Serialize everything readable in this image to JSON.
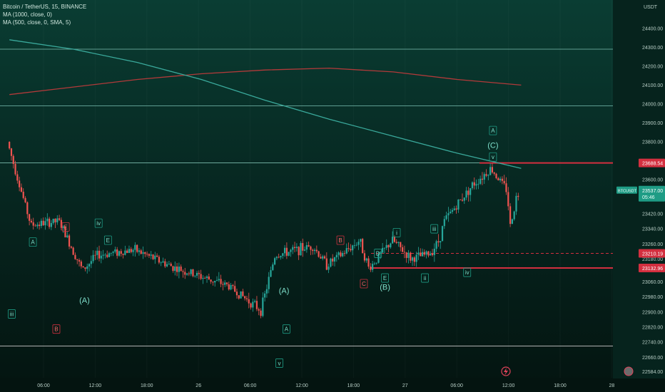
{
  "symbol": {
    "title": "Bitcoin / TetherUS, 15, BINANCE",
    "indicator_1": "MA (1000, close, 0)",
    "indicator_2": "MA (500, close, 0, SMA, 5)"
  },
  "currency_label": "USDT",
  "colors": {
    "background_top": "#0a3d33",
    "background_bottom": "#041410",
    "up_candle": "#26a69a",
    "down_candle": "#ef5350",
    "ma_1000": "#b23a3a",
    "ma_500": "#3aa99b",
    "accent_red": "#d32f3f",
    "accent_green": "#1e9c85"
  },
  "price_badges": {
    "top_resistance": "23688.54",
    "current": "23537.00",
    "current_sub": "05:46",
    "symbol_tag": "BTCUSDT",
    "dashed_level": "23210.19",
    "support": "23132.96"
  },
  "icons": {
    "lightning_icon": "lightning-icon",
    "reset_icon": "reset-icon"
  },
  "chart_data": {
    "type": "candlestick",
    "title": "Bitcoin / TetherUS, 15, BINANCE",
    "xlabel": "",
    "ylabel": "USDT",
    "ylim": [
      22560,
      24520
    ],
    "y_ticks": [
      24400,
      24300,
      24200,
      24100,
      24000,
      23900,
      23800,
      23600,
      23520,
      23420,
      23340,
      23260,
      23180,
      23060,
      22980,
      22900,
      22820,
      22740,
      22660,
      22584
    ],
    "x_ticks": [
      "06:00",
      "12:00",
      "18:00",
      "26",
      "06:00",
      "12:00",
      "18:00",
      "27",
      "06:00",
      "12:00",
      "18:00",
      "28"
    ],
    "series": [
      {
        "name": "MA (1000, close, 0)",
        "x_start": 0,
        "x_end": 1.02,
        "values": [
          24050,
          24090,
          24130,
          24160,
          24180,
          24190,
          24170,
          24130,
          24100
        ]
      },
      {
        "name": "MA (500, close, 0, SMA, 5)",
        "x_start": 0,
        "x_end": 1.02,
        "values": [
          24340,
          24290,
          24220,
          24130,
          24020,
          23920,
          23830,
          23740,
          23660
        ]
      }
    ],
    "horizontal_lines": [
      24290,
      23990,
      23688.54,
      23210.19,
      23132.96,
      22720
    ],
    "price_path": [
      [
        0.0,
        23800
      ],
      [
        0.1,
        23360
      ],
      [
        0.22,
        23380
      ],
      [
        0.32,
        23120
      ],
      [
        0.38,
        23200
      ],
      [
        0.54,
        23230
      ],
      [
        0.72,
        23130
      ],
      [
        0.94,
        23040
      ],
      [
        1.08,
        22910
      ],
      [
        1.14,
        23200
      ],
      [
        1.3,
        23250
      ],
      [
        1.36,
        23150
      ],
      [
        1.42,
        23200
      ],
      [
        1.5,
        23280
      ],
      [
        1.54,
        23130
      ],
      [
        1.64,
        23280
      ],
      [
        1.72,
        23180
      ],
      [
        1.8,
        23210
      ],
      [
        1.84,
        23280
      ],
      [
        1.86,
        23380
      ],
      [
        1.98,
        23570
      ],
      [
        2.06,
        23660
      ],
      [
        2.13,
        23540
      ],
      [
        2.14,
        23340
      ],
      [
        2.17,
        23520
      ]
    ],
    "wave_labels": [
      {
        "text": "iii",
        "t": 0.01,
        "p": 22890
      },
      {
        "text": "A",
        "t": 0.1,
        "p": 23270
      },
      {
        "text": "E",
        "t": 0.24,
        "p": 23350
      },
      {
        "text": "B",
        "t": 0.2,
        "p": 22810
      },
      {
        "text": "iv",
        "t": 0.38,
        "p": 23370
      },
      {
        "text": "E",
        "t": 0.42,
        "p": 23280
      },
      {
        "text": "(A)",
        "t": 0.32,
        "p": 22960
      },
      {
        "text": "(A)",
        "t": 1.17,
        "p": 23010
      },
      {
        "text": "A",
        "t": 1.18,
        "p": 22810
      },
      {
        "text": "v",
        "t": 1.15,
        "p": 22630
      },
      {
        "text": "B",
        "t": 1.41,
        "p": 23280
      },
      {
        "text": "C",
        "t": 1.51,
        "p": 23050
      },
      {
        "text": "E",
        "t": 1.6,
        "p": 23080
      },
      {
        "text": "(B)",
        "t": 1.6,
        "p": 23030
      },
      {
        "text": "D",
        "t": 1.57,
        "p": 23210
      },
      {
        "text": "i",
        "t": 1.65,
        "p": 23320
      },
      {
        "text": "ii",
        "t": 1.77,
        "p": 23080
      },
      {
        "text": "iii",
        "t": 1.81,
        "p": 23340
      },
      {
        "text": "iv",
        "t": 1.95,
        "p": 23110
      },
      {
        "text": "A",
        "t": 2.06,
        "p": 23860
      },
      {
        "text": "(C)",
        "t": 2.06,
        "p": 23780
      },
      {
        "text": "v",
        "t": 2.06,
        "p": 23720
      }
    ]
  }
}
